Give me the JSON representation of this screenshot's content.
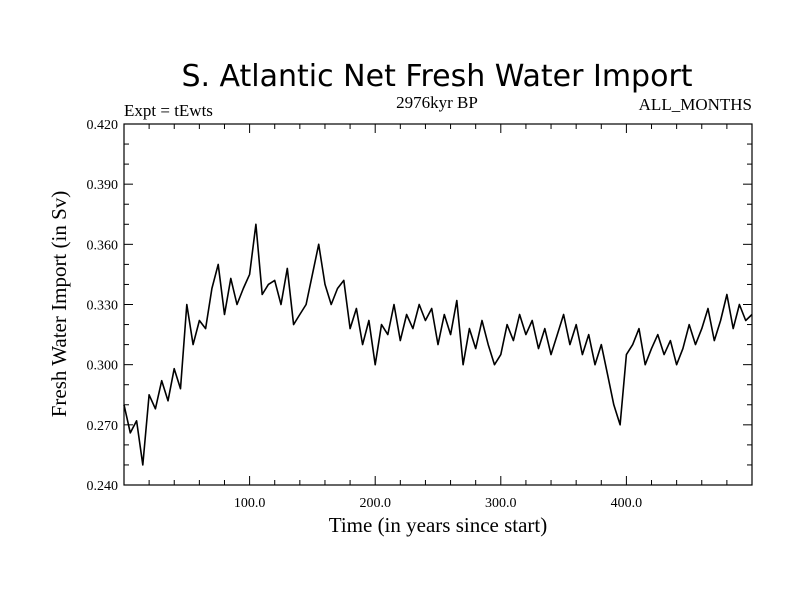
{
  "chart_data": {
    "type": "line",
    "title": "S. Atlantic Net Fresh Water Import",
    "subtitle_left": "Expt = tEwts",
    "subtitle_center": "2976kyr BP",
    "subtitle_right": "ALL_MONTHS",
    "xlabel": "Time (in years since start)",
    "ylabel": "Fresh Water Import (in Sv)",
    "xlim": [
      0,
      500
    ],
    "ylim": [
      0.24,
      0.42
    ],
    "xticks": [
      100,
      200,
      300,
      400
    ],
    "xtick_labels": [
      "100.0",
      "200.0",
      "300.0",
      "400.0"
    ],
    "yticks": [
      0.24,
      0.27,
      0.3,
      0.33,
      0.36,
      0.39,
      0.42
    ],
    "ytick_labels": [
      "0.240",
      "0.270",
      "0.300",
      "0.330",
      "0.360",
      "0.390",
      "0.420"
    ],
    "grid": false,
    "series": [
      {
        "name": "Net Fresh Water Import",
        "x": [
          0,
          5,
          10,
          15,
          20,
          25,
          30,
          35,
          40,
          45,
          50,
          55,
          60,
          65,
          70,
          75,
          80,
          85,
          90,
          95,
          100,
          105,
          110,
          115,
          120,
          125,
          130,
          135,
          140,
          145,
          150,
          155,
          160,
          165,
          170,
          175,
          180,
          185,
          190,
          195,
          200,
          205,
          210,
          215,
          220,
          225,
          230,
          235,
          240,
          245,
          250,
          255,
          260,
          265,
          270,
          275,
          280,
          285,
          290,
          295,
          300,
          305,
          310,
          315,
          320,
          325,
          330,
          335,
          340,
          345,
          350,
          355,
          360,
          365,
          370,
          375,
          380,
          385,
          390,
          395,
          400,
          405,
          410,
          415,
          420,
          425,
          430,
          435,
          440,
          445,
          450,
          455,
          460,
          465,
          470,
          475,
          480,
          485,
          490,
          495,
          500
        ],
        "values": [
          0.28,
          0.266,
          0.272,
          0.25,
          0.285,
          0.278,
          0.292,
          0.282,
          0.298,
          0.288,
          0.33,
          0.31,
          0.322,
          0.318,
          0.338,
          0.35,
          0.325,
          0.343,
          0.33,
          0.338,
          0.345,
          0.37,
          0.335,
          0.34,
          0.342,
          0.33,
          0.348,
          0.32,
          0.325,
          0.33,
          0.345,
          0.36,
          0.34,
          0.33,
          0.338,
          0.342,
          0.318,
          0.328,
          0.31,
          0.322,
          0.3,
          0.32,
          0.315,
          0.33,
          0.312,
          0.325,
          0.318,
          0.33,
          0.322,
          0.328,
          0.31,
          0.325,
          0.315,
          0.332,
          0.3,
          0.318,
          0.308,
          0.322,
          0.31,
          0.3,
          0.305,
          0.32,
          0.312,
          0.325,
          0.315,
          0.322,
          0.308,
          0.318,
          0.305,
          0.315,
          0.325,
          0.31,
          0.32,
          0.305,
          0.315,
          0.3,
          0.31,
          0.295,
          0.28,
          0.27,
          0.305,
          0.31,
          0.318,
          0.3,
          0.308,
          0.315,
          0.305,
          0.312,
          0.3,
          0.308,
          0.32,
          0.31,
          0.318,
          0.328,
          0.312,
          0.322,
          0.335,
          0.318,
          0.33,
          0.322,
          0.325
        ]
      }
    ]
  }
}
